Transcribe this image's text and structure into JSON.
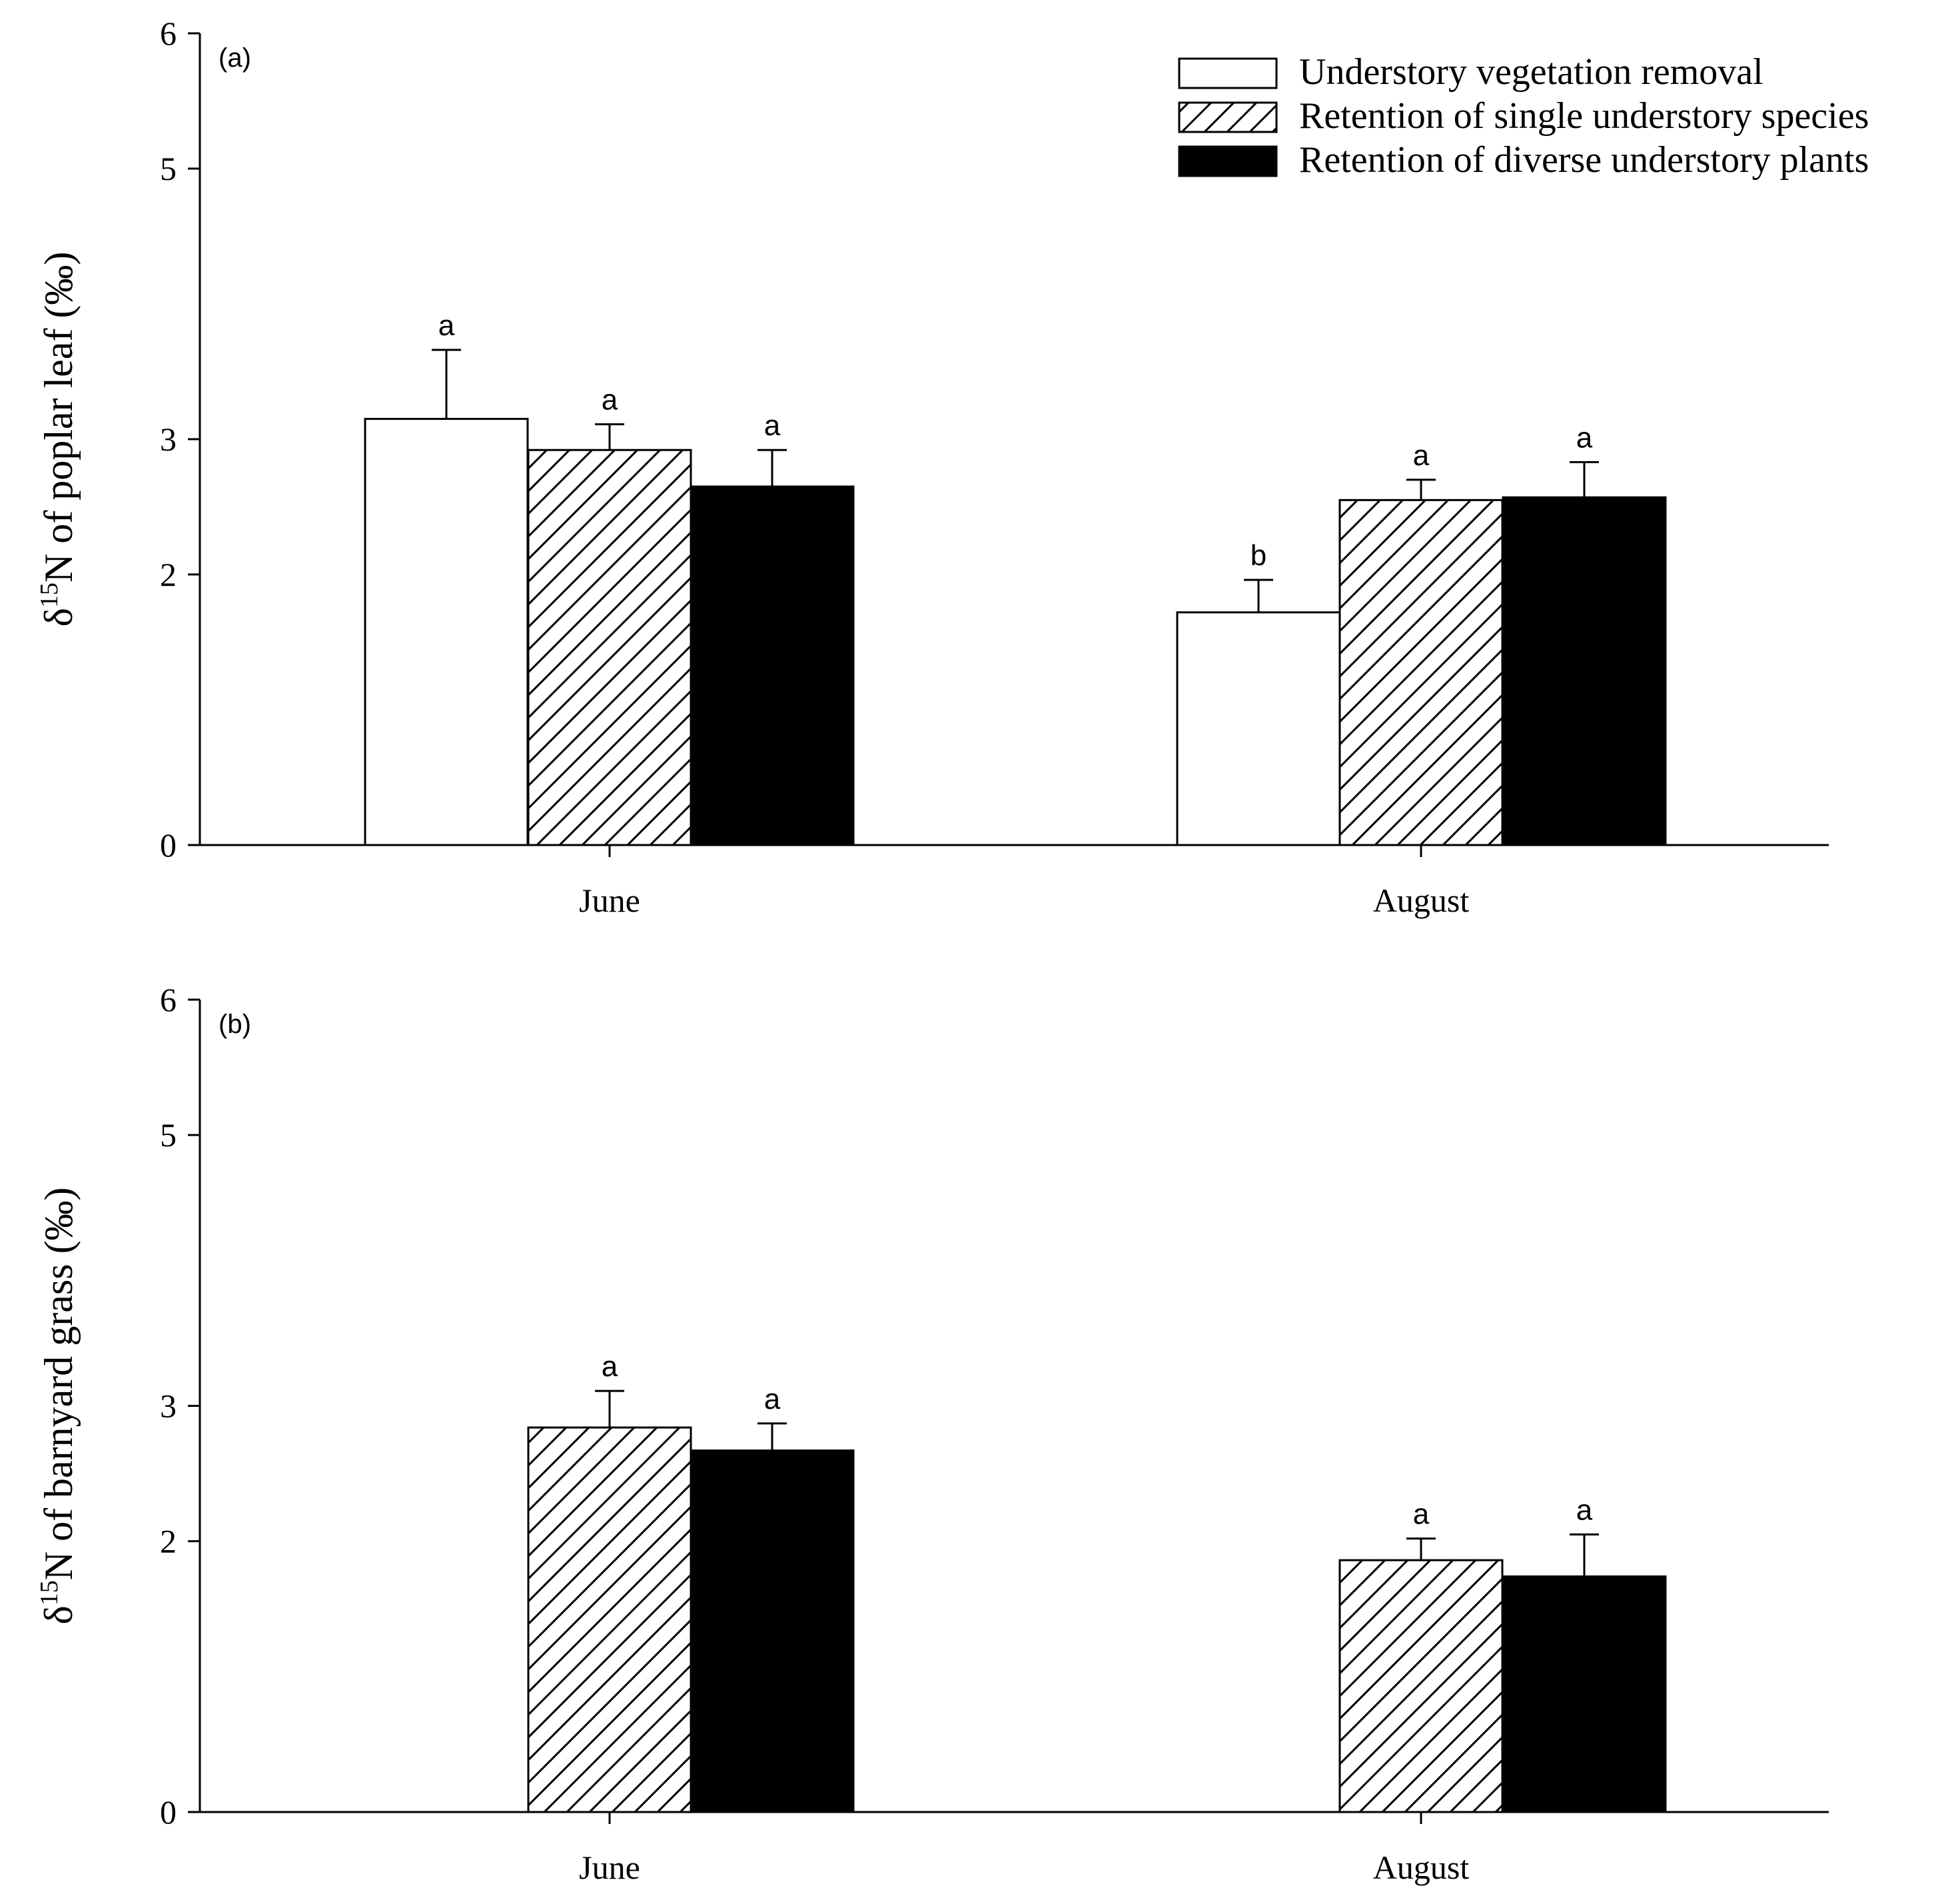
{
  "chart_data": [
    {
      "type": "bar",
      "panel": "(a)",
      "ylabel_prefix": "δ",
      "ylabel_sup": "15",
      "ylabel_rest": "N of poplar leaf (‰)",
      "ylim": [
        0,
        6
      ],
      "ytick_values": [
        0,
        2,
        3,
        5,
        6
      ],
      "ytick_labels": [
        "0",
        "2",
        "3",
        "5",
        "6"
      ],
      "categories": [
        "June",
        "August"
      ],
      "series": [
        {
          "name": "Understory vegetation removal",
          "fill": "white",
          "values": [
            3.15,
            1.72
          ],
          "errors": [
            0.51,
            0.24
          ],
          "letters": [
            "a",
            "b"
          ]
        },
        {
          "name": "Retention of single understory species",
          "fill": "hatch",
          "values": [
            2.92,
            2.55
          ],
          "errors": [
            0.19,
            0.15
          ],
          "letters": [
            "a",
            "a"
          ]
        },
        {
          "name": "Retention of diverse understory plants",
          "fill": "black",
          "values": [
            2.65,
            2.57
          ],
          "errors": [
            0.27,
            0.26
          ],
          "letters": [
            "a",
            "a"
          ]
        }
      ],
      "legend_position": "top-right"
    },
    {
      "type": "bar",
      "panel": "(b)",
      "ylabel_prefix": "δ",
      "ylabel_sup": "15",
      "ylabel_rest": "N of barnyard grass (‰)",
      "ylim": [
        0,
        6
      ],
      "ytick_values": [
        0,
        2,
        3,
        5,
        6
      ],
      "ytick_labels": [
        "0",
        "2",
        "3",
        "5",
        "6"
      ],
      "categories": [
        "June",
        "August"
      ],
      "series": [
        {
          "name": "Retention of single understory species",
          "fill": "hatch",
          "values": [
            2.84,
            1.86
          ],
          "errors": [
            0.27,
            0.16
          ],
          "letters": [
            "a",
            "a"
          ]
        },
        {
          "name": "Retention of diverse understory plants",
          "fill": "black",
          "values": [
            2.67,
            1.74
          ],
          "errors": [
            0.2,
            0.31
          ],
          "letters": [
            "a",
            "a"
          ]
        }
      ]
    }
  ],
  "legend": [
    {
      "label": "Understory vegetation removal",
      "fill": "white"
    },
    {
      "label": "Retention of single understory species",
      "fill": "hatch"
    },
    {
      "label": "Retention of diverse understory plants",
      "fill": "black"
    }
  ],
  "colors": {
    "bar_black": "#000000",
    "bar_white": "#ffffff",
    "axis": "#000000"
  }
}
